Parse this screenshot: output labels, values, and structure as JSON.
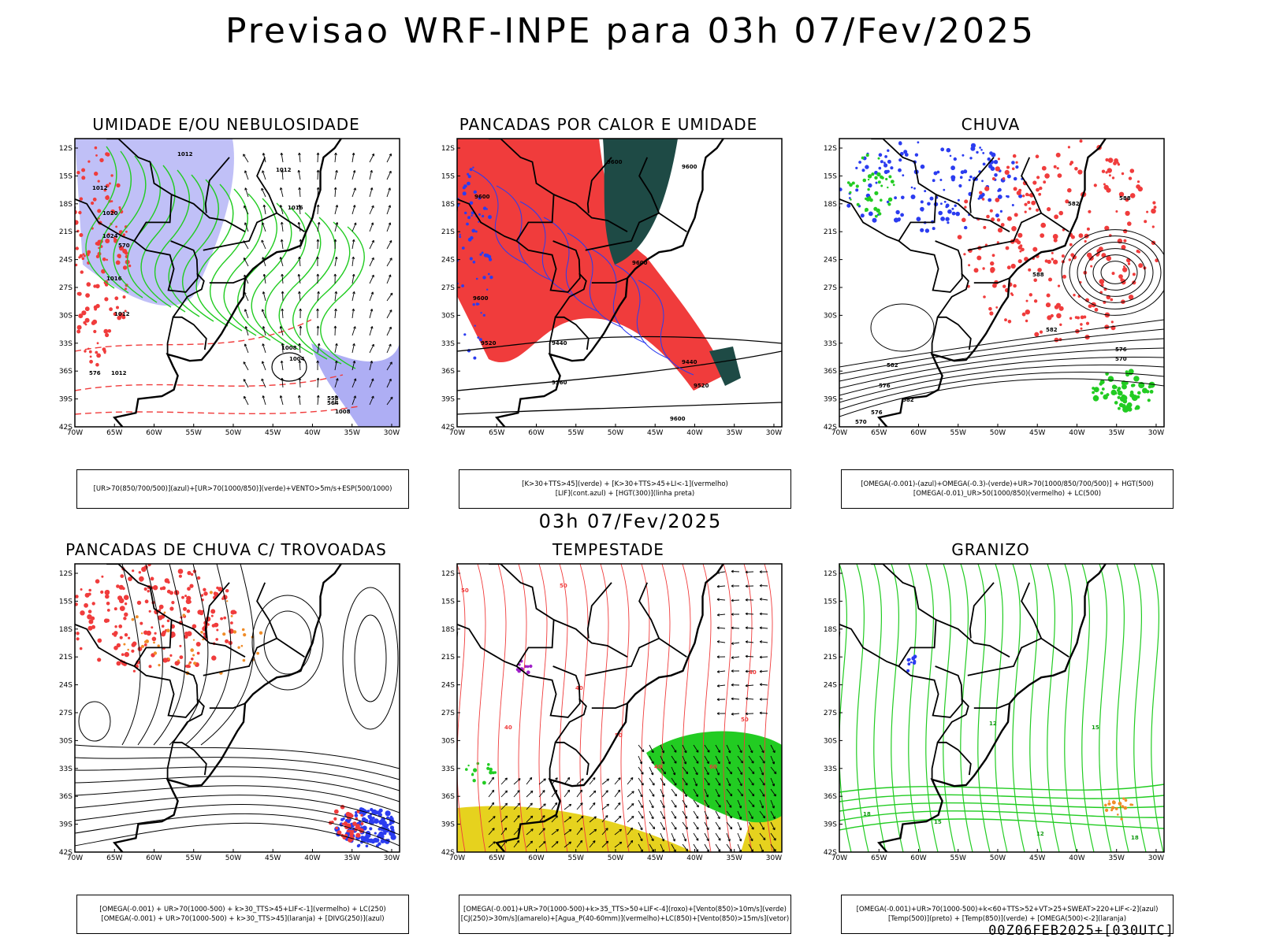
{
  "header": {
    "title": "Previsao WRF-INPE  para 03h 07/Fev/2025"
  },
  "mid_title": "03h 07/Fev/2025",
  "footer": "00Z06FEB2025+[030UTC]",
  "axes": {
    "lat_labels": [
      "12S",
      "15S",
      "18S",
      "21S",
      "24S",
      "27S",
      "30S",
      "33S",
      "36S",
      "39S",
      "42S"
    ],
    "lon_labels": [
      "70W",
      "65W",
      "60W",
      "55W",
      "50W",
      "45W",
      "40W",
      "35W",
      "30W"
    ]
  },
  "panels": [
    {
      "title": "UMIDADE E/OU NEBULOSIDADE",
      "legend": [
        "[UR>70(850/700/500)](azul)+[UR>70(1000/850)](verde)+VENTO>5m/s+ESP(500/1000)"
      ],
      "contour_labels": [
        "1012",
        "1012",
        "1012",
        "1016",
        "1020",
        "1024",
        "1016",
        "1012",
        "1008",
        "1004",
        "1008",
        "1012",
        "570",
        "576",
        "564",
        "558"
      ]
    },
    {
      "title": "PANCADAS POR CALOR E UMIDADE",
      "legend": [
        "[K>30+TTS>45](verde) + [K>30+TTS>45+LI<-1](vermelho)",
        "[LIF](cont.azul) + [HGT(300)](linha preta)"
      ],
      "contour_labels": [
        "9600",
        "9600",
        "9600",
        "9600",
        "9600",
        "9520",
        "9440",
        "9440",
        "9520",
        "9360",
        "9600"
      ]
    },
    {
      "title": "CHUVA",
      "legend": [
        "[OMEGA(-0.001)-(azul)+OMEGA(-0.3)-(verde)+UR>70(1000/850/700/500)] + HGT(500)",
        "[OMEGA(-0.01)_UR>50(1000/850)(vermelho) + LC(500)"
      ],
      "contour_labels": [
        "588",
        "582",
        "588",
        "582",
        "576",
        "570",
        "582",
        "576",
        "582",
        "576",
        "570"
      ]
    },
    {
      "title": "PANCADAS DE CHUVA C/ TROVOADAS",
      "legend": [
        "[OMEGA(-0.001) + UR>70(1000-500) + k>30_TTS>45+LIF<-1](vermelho) + LC(250)",
        "[OMEGA(-0.001) + UR>70(1000-500) + k>30_TTS>45](laranja) + [DIVG(250)](azul)"
      ],
      "contour_labels": []
    },
    {
      "title": "TEMPESTADE",
      "legend": [
        "[OMEGA(-0.001)+UR>70(1000-500)+k>35_TTS>50+LIF<-4](roxo)+[Vento(850)>10m/s](verde)",
        "[CJ(250)>30m/s](amarelo)+[Agua_P(40-60mm)](vermelho)+LC(850)+[Vento(850)>15m/s](vetor)"
      ],
      "contour_labels": [
        "50",
        "50",
        "40",
        "40",
        "50",
        "40",
        "60",
        "50",
        "40"
      ]
    },
    {
      "title": "GRANIZO",
      "legend": [
        "[OMEGA(-0.001)+UR>70(1000-500)+k<60+TTS>52+VT>25+SWEAT>220+LIF<-2](azul)",
        "[Temp(500)](preto) + [Temp(850)](verde) + [OMEGA(500)<-2](laranja)"
      ],
      "contour_labels": [
        "15",
        "12",
        "18",
        "15",
        "12",
        "18"
      ]
    }
  ],
  "colors": {
    "red": "#f03c3c",
    "blue": "#2b3cf0",
    "green": "#22cc22",
    "lavender": "#8c8cf0",
    "darkgreen": "#1e4a45",
    "yellow": "#e6d21e",
    "orange": "#f08c28",
    "purple": "#a020c8"
  }
}
